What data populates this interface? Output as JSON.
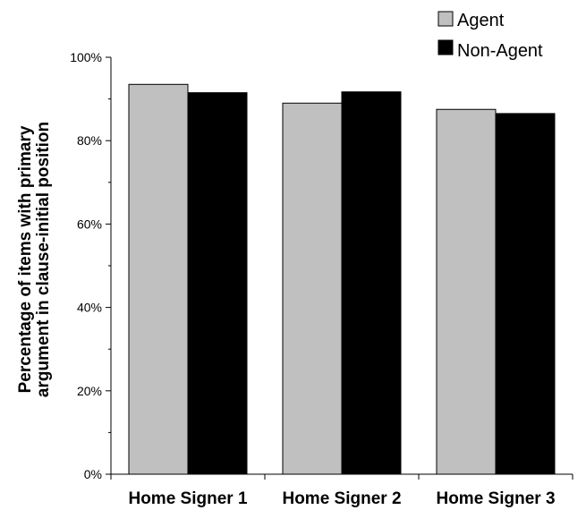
{
  "chart_data": {
    "type": "bar",
    "title": "",
    "xlabel": "",
    "ylabel_lines": [
      "Percentage of items with primary",
      "argument in clause-initial position"
    ],
    "categories": [
      "Home Signer 1",
      "Home Signer 2",
      "Home Signer 3"
    ],
    "series": [
      {
        "name": "Agent",
        "values": [
          93.5,
          89.0,
          87.5
        ],
        "color": "#c0c0c0"
      },
      {
        "name": "Non-Agent",
        "values": [
          91.5,
          91.7,
          86.5
        ],
        "color": "#000000"
      }
    ],
    "ylim": [
      0,
      100
    ],
    "yticks": [
      0,
      20,
      40,
      60,
      80,
      100
    ],
    "ytick_labels": [
      "0%",
      "20%",
      "40%",
      "60%",
      "80%",
      "100%"
    ],
    "grid": false,
    "legend_position": "top-right"
  }
}
